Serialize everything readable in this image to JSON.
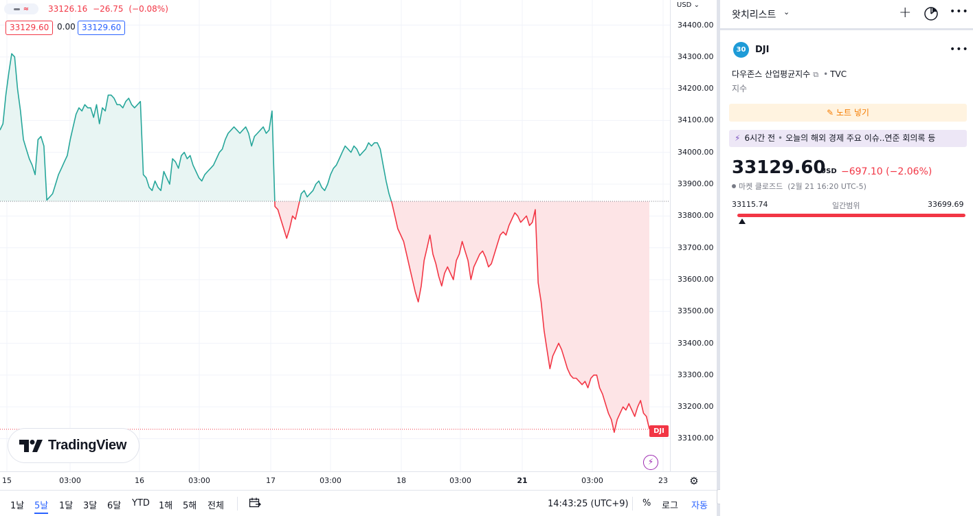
{
  "chart": {
    "legend": {
      "open_last": "33126.16",
      "change": "−26.75",
      "change_pct": "(−0.08%)",
      "bid": "33129.60",
      "spread": "0.00",
      "ask": "33129.60"
    },
    "currency_label": "USD",
    "price_ticks": [
      "34400.00",
      "34300.00",
      "34200.00",
      "34100.00",
      "34000.00",
      "33900.00",
      "33800.00",
      "33700.00",
      "33600.00",
      "33500.00",
      "33400.00",
      "33300.00",
      "33200.00",
      "33100.00"
    ],
    "time_ticks": [
      "15",
      "03:00",
      "16",
      "03:00",
      "17",
      "03:00",
      "18",
      "03:00",
      "21",
      "03:00",
      "23"
    ],
    "symbol_tag": "DJI",
    "logo_text": "TradingView",
    "colors": {
      "up": "#26a69a",
      "down": "#f23645",
      "up_fill": "#e8f5f3",
      "down_fill": "#fde4e6"
    }
  },
  "chart_data": {
    "type": "area",
    "title": "",
    "xlabel": "",
    "ylabel": "",
    "currency": "USD",
    "ylim": [
      33060,
      34440
    ],
    "baseline": 33846,
    "last_price_line": 33129.6,
    "x_ticks": [
      "15",
      "03:00",
      "16",
      "03:00",
      "17",
      "03:00",
      "18",
      "03:00",
      "21",
      "03:00",
      "23"
    ],
    "series": [
      {
        "values": [
          34070,
          34090,
          34180,
          34250,
          34310,
          34300,
          34200,
          34130,
          34040,
          34010,
          33980,
          33960,
          33930,
          34040,
          34050,
          34020,
          33850,
          33860,
          33870,
          33900,
          33930,
          33950,
          33970,
          33990,
          34040,
          34080,
          34120,
          34140,
          34130,
          34150,
          34140,
          34140,
          34110,
          34150,
          34090,
          34140,
          34130,
          34180,
          34180,
          34170,
          34150,
          34150,
          34140,
          34160,
          34170,
          34150,
          34140,
          34150,
          34160,
          33930,
          33920,
          33890,
          33880,
          33910,
          33890,
          33880,
          33940,
          33920,
          33900,
          33980,
          33970,
          33950,
          33990,
          34000,
          33980,
          33990,
          33960,
          33940,
          33920,
          33910,
          33930,
          33940,
          33950,
          33960,
          33980,
          34000,
          34010,
          34040,
          34060,
          34070,
          34080,
          34070,
          34060,
          34070,
          34080,
          34060,
          34020,
          34050,
          34060,
          34070,
          34080,
          34060,
          34070,
          34130,
          33830,
          33820,
          33790,
          33760,
          33730,
          33760,
          33800,
          33790,
          33830,
          33870,
          33880,
          33860,
          33870,
          33880,
          33900,
          33910,
          33890,
          33880,
          33900,
          33930,
          33950,
          33960,
          33980,
          34000,
          34020,
          34010,
          34000,
          34020,
          34010,
          33990,
          34000,
          34010,
          34030,
          34020,
          34030,
          34030,
          34010,
          33960,
          33910,
          33870,
          33840,
          33800,
          33760,
          33740,
          33720,
          33680,
          33640,
          33600,
          33560,
          33530,
          33580,
          33660,
          33700,
          33740,
          33680,
          33650,
          33610,
          33580,
          33620,
          33640,
          33620,
          33600,
          33660,
          33680,
          33720,
          33690,
          33660,
          33600,
          33640,
          33660,
          33680,
          33690,
          33670,
          33640,
          33650,
          33680,
          33710,
          33740,
          33750,
          33740,
          33770,
          33790,
          33810,
          33800,
          33780,
          33790,
          33800,
          33770,
          33780,
          33820,
          33590,
          33530,
          33440,
          33380,
          33320,
          33360,
          33380,
          33400,
          33380,
          33350,
          33320,
          33300,
          33290,
          33290,
          33280,
          33270,
          33280,
          33260,
          33290,
          33300,
          33300,
          33260,
          33240,
          33210,
          33180,
          33160,
          33120,
          33160,
          33180,
          33200,
          33190,
          33210,
          33190,
          33170,
          33200,
          33220,
          33180,
          33170,
          33130
        ]
      }
    ]
  },
  "bottom_bar": {
    "ranges": [
      "1날",
      "5날",
      "1달",
      "3달",
      "6달",
      "YTD",
      "1해",
      "5해",
      "전체"
    ],
    "active_range": "5날",
    "clock": "14:43:25 (UTC+9)",
    "percent": "%",
    "log": "로그",
    "auto": "자동"
  },
  "sidebar": {
    "watchlist_title": "왓치리스트",
    "symbol_badge": "30",
    "symbol": "DJI",
    "full_name": "다우존스 산업평균지수",
    "exchange": "TVC",
    "type": "지수",
    "note_button": "노트 넣기",
    "news": {
      "time": "6시간 전",
      "headline": "오늘의 해외 경제 주요 이슈..연준 회의록 등"
    },
    "last_price": "33129.60",
    "currency": "USD",
    "change": "−697.10",
    "change_pct": "(−2.06%)",
    "market_status": "마켓 클로즈드",
    "status_time": "(2월 21 16:20 UTC-5)",
    "day_low": "33115.74",
    "day_range_label": "일간범위",
    "day_high": "33699.69",
    "day_position": 0.02
  }
}
